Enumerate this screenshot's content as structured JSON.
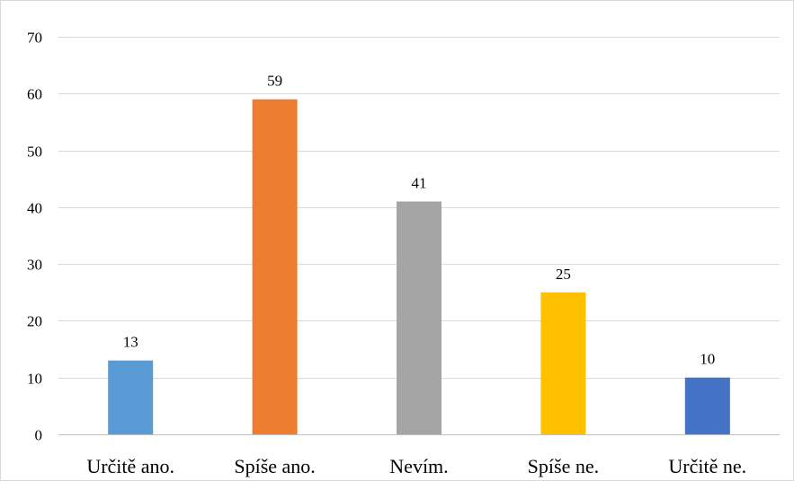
{
  "chart_data": {
    "type": "bar",
    "categories": [
      "Určitě ano.",
      "Spíše ano.",
      "Nevím.",
      "Spíše ne.",
      "Určitě ne."
    ],
    "values": [
      13,
      59,
      41,
      25,
      10
    ],
    "data_labels": [
      "13",
      "59",
      "41",
      "25",
      "10"
    ],
    "colors": [
      "#5b9bd5",
      "#ed7d31",
      "#a5a5a5",
      "#ffc000",
      "#4472c4"
    ],
    "ylim": [
      0,
      70
    ],
    "yticks": [
      0,
      10,
      20,
      30,
      40,
      50,
      60,
      70
    ],
    "ytick_labels": [
      "0",
      "10",
      "20",
      "30",
      "40",
      "50",
      "60",
      "70"
    ],
    "grid": true,
    "gridline_color": "#d9d9d9",
    "axis_color": "#bfbfbf"
  }
}
